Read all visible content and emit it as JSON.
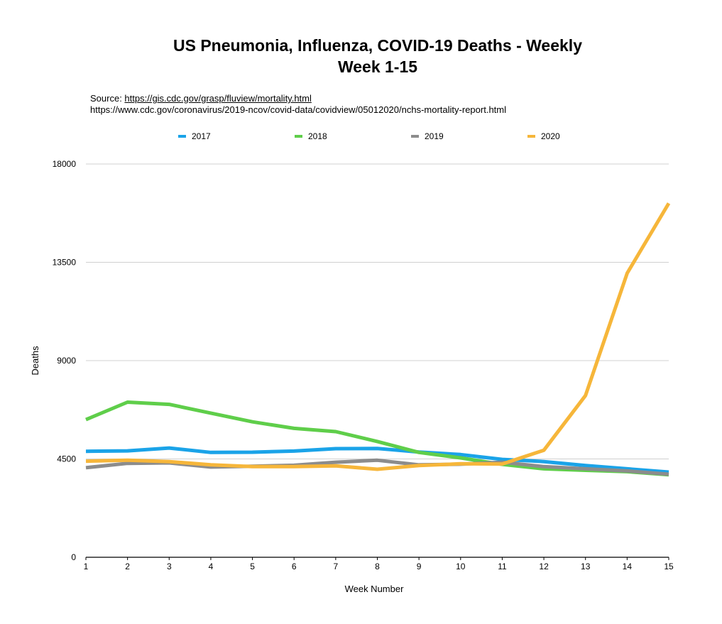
{
  "chart_data": {
    "type": "line",
    "title": "US Pneumonia, Influenza, COVID-19 Deaths - Weekly",
    "subtitle": "Week 1-15",
    "source_prefix": "Source: ",
    "source_url_1": "https://gis.cdc.gov/grasp/fluview/mortality.html",
    "source_url_2": "https://www.cdc.gov/coronavirus/2019-ncov/covid-data/covidview/05012020/nchs-mortality-report.html",
    "xlabel": "Week Number",
    "ylabel": "Deaths",
    "x": [
      1,
      2,
      3,
      4,
      5,
      6,
      7,
      8,
      9,
      10,
      11,
      12,
      13,
      14,
      15
    ],
    "x_tick_labels": [
      "1",
      "2",
      "3",
      "4",
      "5",
      "6",
      "7",
      "8",
      "9",
      "10",
      "11",
      "12",
      "13",
      "14",
      "15"
    ],
    "ylim": [
      0,
      18000
    ],
    "y_ticks": [
      0,
      4500,
      9000,
      13500,
      18000
    ],
    "y_tick_labels": [
      "0",
      "4500",
      "9000",
      "13500",
      "18000"
    ],
    "grid": true,
    "legend_position": "top",
    "series": [
      {
        "name": "2017",
        "color": "#1AA3E8",
        "values": [
          4850,
          4870,
          5000,
          4800,
          4810,
          4860,
          4970,
          4980,
          4820,
          4700,
          4480,
          4380,
          4200,
          4050,
          3900
        ]
      },
      {
        "name": "2018",
        "color": "#5FCE4A",
        "values": [
          6300,
          7100,
          7000,
          6600,
          6200,
          5900,
          5750,
          5300,
          4800,
          4550,
          4250,
          4050,
          3980,
          3920,
          3780
        ]
      },
      {
        "name": "2019",
        "color": "#8C8C8C",
        "values": [
          4100,
          4300,
          4320,
          4130,
          4170,
          4210,
          4350,
          4440,
          4230,
          4260,
          4350,
          4150,
          4050,
          3950,
          3800
        ]
      },
      {
        "name": "2020",
        "color": "#F6B63A",
        "values": [
          4400,
          4440,
          4380,
          4230,
          4150,
          4150,
          4180,
          4030,
          4200,
          4280,
          4270,
          4900,
          7400,
          13000,
          16200
        ]
      }
    ]
  }
}
